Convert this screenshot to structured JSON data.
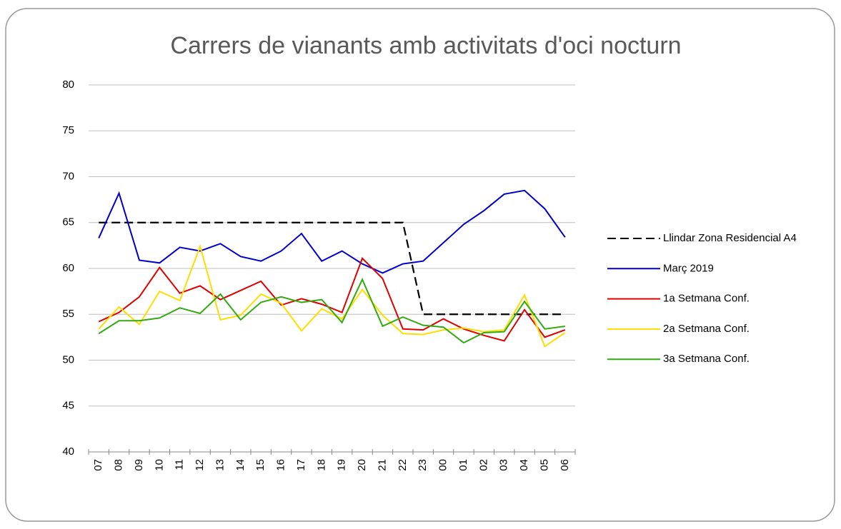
{
  "chart_data": {
    "type": "line",
    "title": "Carrers de vianants amb activitats d'oci nocturn",
    "categories": [
      "07",
      "08",
      "09",
      "10",
      "11",
      "12",
      "13",
      "14",
      "15",
      "16",
      "17",
      "18",
      "19",
      "20",
      "21",
      "22",
      "23",
      "00",
      "01",
      "02",
      "03",
      "04",
      "05",
      "06"
    ],
    "ylim": [
      40,
      80
    ],
    "yticks": [
      40,
      45,
      50,
      55,
      60,
      65,
      70,
      75,
      80
    ],
    "grid": true,
    "legend": "right",
    "series": [
      {
        "name": "Llindar Zona Residencial A4",
        "color": "#000000",
        "style": "dashed",
        "values": [
          65,
          65,
          65,
          65,
          65,
          65,
          65,
          65,
          65,
          65,
          65,
          65,
          65,
          65,
          65,
          65,
          55,
          55,
          55,
          55,
          55,
          55,
          55,
          55
        ]
      },
      {
        "name": "Març 2019",
        "color": "#0000cc",
        "style": "solid",
        "values": [
          63.3,
          68.2,
          60.9,
          60.6,
          62.3,
          61.9,
          62.7,
          61.3,
          60.8,
          61.9,
          63.8,
          60.8,
          61.9,
          60.5,
          59.5,
          60.5,
          60.8,
          62.8,
          64.8,
          66.3,
          68.1,
          68.5,
          66.5,
          63.4
        ]
      },
      {
        "name": "1a Setmana Conf.",
        "color": "#e00000",
        "style": "solid",
        "values": [
          54.2,
          55.2,
          56.9,
          60.1,
          57.3,
          58.1,
          56.6,
          57.6,
          58.6,
          56.0,
          56.7,
          56.1,
          55.2,
          61.1,
          58.9,
          53.4,
          53.3,
          54.5,
          53.4,
          52.7,
          52.1,
          55.5,
          52.5,
          53.3
        ]
      },
      {
        "name": "2a Setmana Conf.",
        "color": "#ffdd00",
        "style": "solid",
        "values": [
          53.4,
          55.8,
          53.9,
          57.5,
          56.5,
          62.4,
          54.4,
          54.9,
          57.2,
          56.2,
          53.2,
          55.6,
          54.5,
          57.7,
          54.9,
          52.9,
          52.8,
          53.3,
          53.5,
          53.1,
          53.3,
          57.1,
          51.5,
          53.0
        ]
      },
      {
        "name": "3a Setmana Conf.",
        "color": "#33aa11",
        "style": "solid",
        "values": [
          52.9,
          54.3,
          54.3,
          54.6,
          55.7,
          55.1,
          57.2,
          54.4,
          56.3,
          56.9,
          56.3,
          56.6,
          54.1,
          58.8,
          53.7,
          54.7,
          53.8,
          53.6,
          51.9,
          53.0,
          53.1,
          56.4,
          53.4,
          53.7
        ]
      }
    ]
  }
}
